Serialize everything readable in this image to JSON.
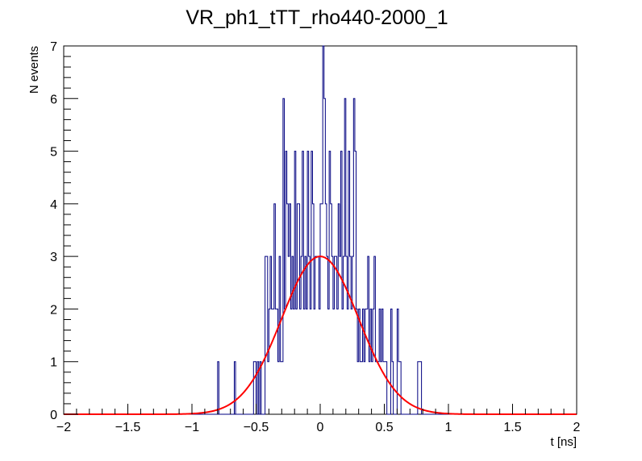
{
  "chart_data": {
    "type": "histogram",
    "title": "VR_ph1_tTT_rho440-2000_1",
    "xlabel": "t [ns]",
    "ylabel": "N events",
    "xlim": [
      -2,
      2
    ],
    "ylim": [
      0,
      7
    ],
    "x_ticks": [
      -2,
      -1.5,
      -1,
      -0.5,
      0,
      0.5,
      1,
      1.5,
      2
    ],
    "x_tick_labels": [
      "−2",
      "−1.5",
      "−1",
      "−0.5",
      "0",
      "0.5",
      "1",
      "1.5",
      "2"
    ],
    "y_ticks": [
      0,
      1,
      2,
      3,
      4,
      5,
      6,
      7
    ],
    "y_tick_labels": [
      "0",
      "1",
      "2",
      "3",
      "4",
      "5",
      "6",
      "7"
    ],
    "bin_width": 0.01,
    "histogram": {
      "color": "#000080",
      "bins": [
        {
          "x": -0.8,
          "y": 1
        },
        {
          "x": -0.67,
          "y": 1
        },
        {
          "x": -0.52,
          "y": 1
        },
        {
          "x": -0.51,
          "y": 1
        },
        {
          "x": -0.49,
          "y": 1
        },
        {
          "x": -0.47,
          "y": 1
        },
        {
          "x": -0.43,
          "y": 3
        },
        {
          "x": -0.42,
          "y": 3
        },
        {
          "x": -0.41,
          "y": 1
        },
        {
          "x": -0.4,
          "y": 2
        },
        {
          "x": -0.39,
          "y": 3
        },
        {
          "x": -0.38,
          "y": 2
        },
        {
          "x": -0.37,
          "y": 2
        },
        {
          "x": -0.36,
          "y": 4
        },
        {
          "x": -0.35,
          "y": 2
        },
        {
          "x": -0.34,
          "y": 2
        },
        {
          "x": -0.33,
          "y": 1
        },
        {
          "x": -0.32,
          "y": 3
        },
        {
          "x": -0.31,
          "y": 1
        },
        {
          "x": -0.3,
          "y": 1
        },
        {
          "x": -0.29,
          "y": 6
        },
        {
          "x": -0.28,
          "y": 2
        },
        {
          "x": -0.27,
          "y": 5
        },
        {
          "x": -0.26,
          "y": 4
        },
        {
          "x": -0.25,
          "y": 3
        },
        {
          "x": -0.24,
          "y": 4
        },
        {
          "x": -0.23,
          "y": 2
        },
        {
          "x": -0.22,
          "y": 3
        },
        {
          "x": -0.21,
          "y": 2
        },
        {
          "x": -0.2,
          "y": 5
        },
        {
          "x": -0.19,
          "y": 2
        },
        {
          "x": -0.18,
          "y": 4
        },
        {
          "x": -0.17,
          "y": 4
        },
        {
          "x": -0.16,
          "y": 2
        },
        {
          "x": -0.15,
          "y": 3
        },
        {
          "x": -0.14,
          "y": 5
        },
        {
          "x": -0.13,
          "y": 2
        },
        {
          "x": -0.12,
          "y": 3
        },
        {
          "x": -0.11,
          "y": 2
        },
        {
          "x": -0.1,
          "y": 5
        },
        {
          "x": -0.09,
          "y": 3
        },
        {
          "x": -0.08,
          "y": 2
        },
        {
          "x": -0.07,
          "y": 5
        },
        {
          "x": -0.06,
          "y": 4
        },
        {
          "x": -0.05,
          "y": 2
        },
        {
          "x": -0.04,
          "y": 3
        },
        {
          "x": -0.03,
          "y": 3
        },
        {
          "x": -0.02,
          "y": 3
        },
        {
          "x": -0.01,
          "y": 2
        },
        {
          "x": 0.0,
          "y": 4
        },
        {
          "x": 0.01,
          "y": 4
        },
        {
          "x": 0.02,
          "y": 7
        },
        {
          "x": 0.03,
          "y": 6
        },
        {
          "x": 0.04,
          "y": 4
        },
        {
          "x": 0.05,
          "y": 3
        },
        {
          "x": 0.06,
          "y": 2
        },
        {
          "x": 0.07,
          "y": 5
        },
        {
          "x": 0.08,
          "y": 4
        },
        {
          "x": 0.09,
          "y": 3
        },
        {
          "x": 0.1,
          "y": 2
        },
        {
          "x": 0.11,
          "y": 3
        },
        {
          "x": 0.12,
          "y": 3
        },
        {
          "x": 0.13,
          "y": 2
        },
        {
          "x": 0.14,
          "y": 4
        },
        {
          "x": 0.15,
          "y": 3
        },
        {
          "x": 0.16,
          "y": 5
        },
        {
          "x": 0.17,
          "y": 2
        },
        {
          "x": 0.18,
          "y": 3
        },
        {
          "x": 0.19,
          "y": 6
        },
        {
          "x": 0.2,
          "y": 3
        },
        {
          "x": 0.21,
          "y": 2
        },
        {
          "x": 0.22,
          "y": 5
        },
        {
          "x": 0.23,
          "y": 3
        },
        {
          "x": 0.24,
          "y": 2
        },
        {
          "x": 0.25,
          "y": 3
        },
        {
          "x": 0.26,
          "y": 6
        },
        {
          "x": 0.27,
          "y": 5
        },
        {
          "x": 0.28,
          "y": 2
        },
        {
          "x": 0.29,
          "y": 1
        },
        {
          "x": 0.3,
          "y": 2
        },
        {
          "x": 0.31,
          "y": 1
        },
        {
          "x": 0.32,
          "y": 1
        },
        {
          "x": 0.33,
          "y": 2
        },
        {
          "x": 0.34,
          "y": 1
        },
        {
          "x": 0.35,
          "y": 2
        },
        {
          "x": 0.36,
          "y": 2
        },
        {
          "x": 0.37,
          "y": 3
        },
        {
          "x": 0.38,
          "y": 1
        },
        {
          "x": 0.39,
          "y": 2
        },
        {
          "x": 0.4,
          "y": 1
        },
        {
          "x": 0.41,
          "y": 2
        },
        {
          "x": 0.42,
          "y": 3
        },
        {
          "x": 0.43,
          "y": 1
        },
        {
          "x": 0.44,
          "y": 1
        },
        {
          "x": 0.45,
          "y": 1
        },
        {
          "x": 0.46,
          "y": 2
        },
        {
          "x": 0.47,
          "y": 1
        },
        {
          "x": 0.48,
          "y": 2
        },
        {
          "x": 0.49,
          "y": 1
        },
        {
          "x": 0.5,
          "y": 1
        },
        {
          "x": 0.51,
          "y": 1
        },
        {
          "x": 0.55,
          "y": 2
        },
        {
          "x": 0.56,
          "y": 1
        },
        {
          "x": 0.6,
          "y": 2
        },
        {
          "x": 0.61,
          "y": 1
        },
        {
          "x": 0.62,
          "y": 1
        },
        {
          "x": 0.76,
          "y": 1
        },
        {
          "x": 0.77,
          "y": 1
        },
        {
          "x": 0.78,
          "y": 1
        }
      ]
    },
    "fit": {
      "type": "gaussian",
      "color": "#ff0000",
      "amplitude": 3.0,
      "mean": 0.0,
      "sigma": 0.3
    },
    "grid": false,
    "legend": "none"
  }
}
